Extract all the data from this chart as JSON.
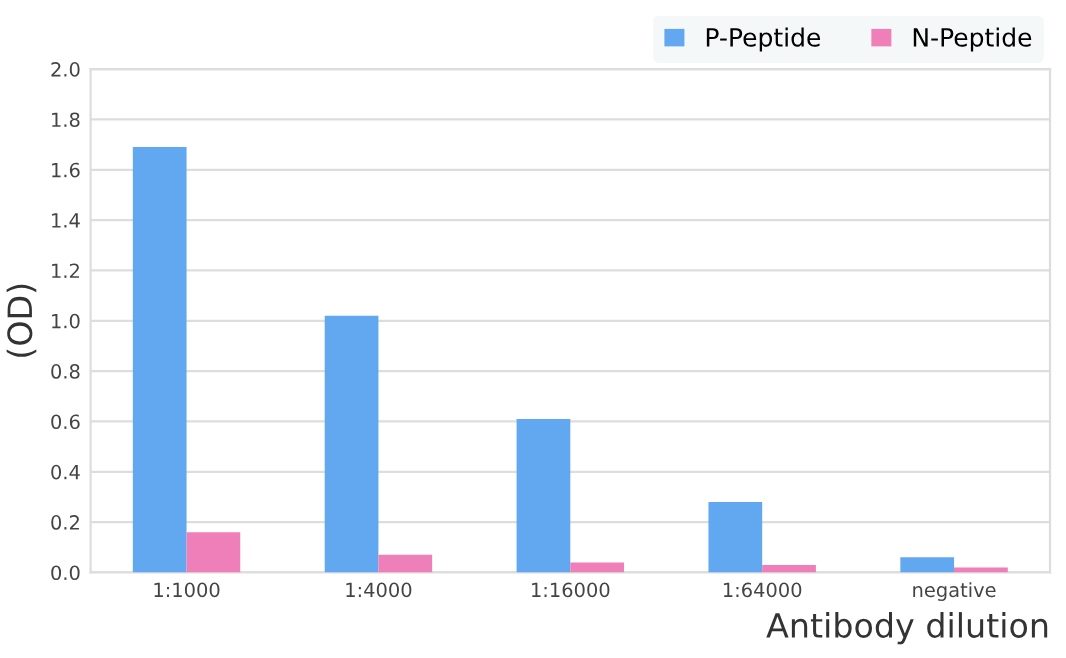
{
  "chart_data": {
    "type": "bar",
    "xlabel": "Antibody dilution",
    "ylabel": "(OD)",
    "categories": [
      "1:1000",
      "1:4000",
      "1:16000",
      "1:64000",
      "negative"
    ],
    "series": [
      {
        "name": "P-Peptide",
        "color": "#62a8f0",
        "values": [
          1.69,
          1.02,
          0.61,
          0.28,
          0.06
        ]
      },
      {
        "name": "N-Peptide",
        "color": "#ee7fb8",
        "values": [
          0.16,
          0.07,
          0.04,
          0.03,
          0.02
        ]
      }
    ],
    "ylim": [
      0,
      2.0
    ],
    "yticks": [
      {
        "value": 0,
        "label": "0.0"
      },
      {
        "value": 0.2,
        "label": "0.2"
      },
      {
        "value": 0.4,
        "label": "0.4"
      },
      {
        "value": 0.6,
        "label": "0.6"
      },
      {
        "value": 0.8,
        "label": "0.8"
      },
      {
        "value": 1.0,
        "label": "1.0"
      },
      {
        "value": 1.2,
        "label": "1.2"
      },
      {
        "value": 1.4,
        "label": "1.4"
      },
      {
        "value": 1.6,
        "label": "1.6"
      },
      {
        "value": 1.8,
        "label": "1.8"
      },
      {
        "value": 2.0,
        "label": "2.0"
      }
    ],
    "grid": "y",
    "legend": "top right"
  }
}
